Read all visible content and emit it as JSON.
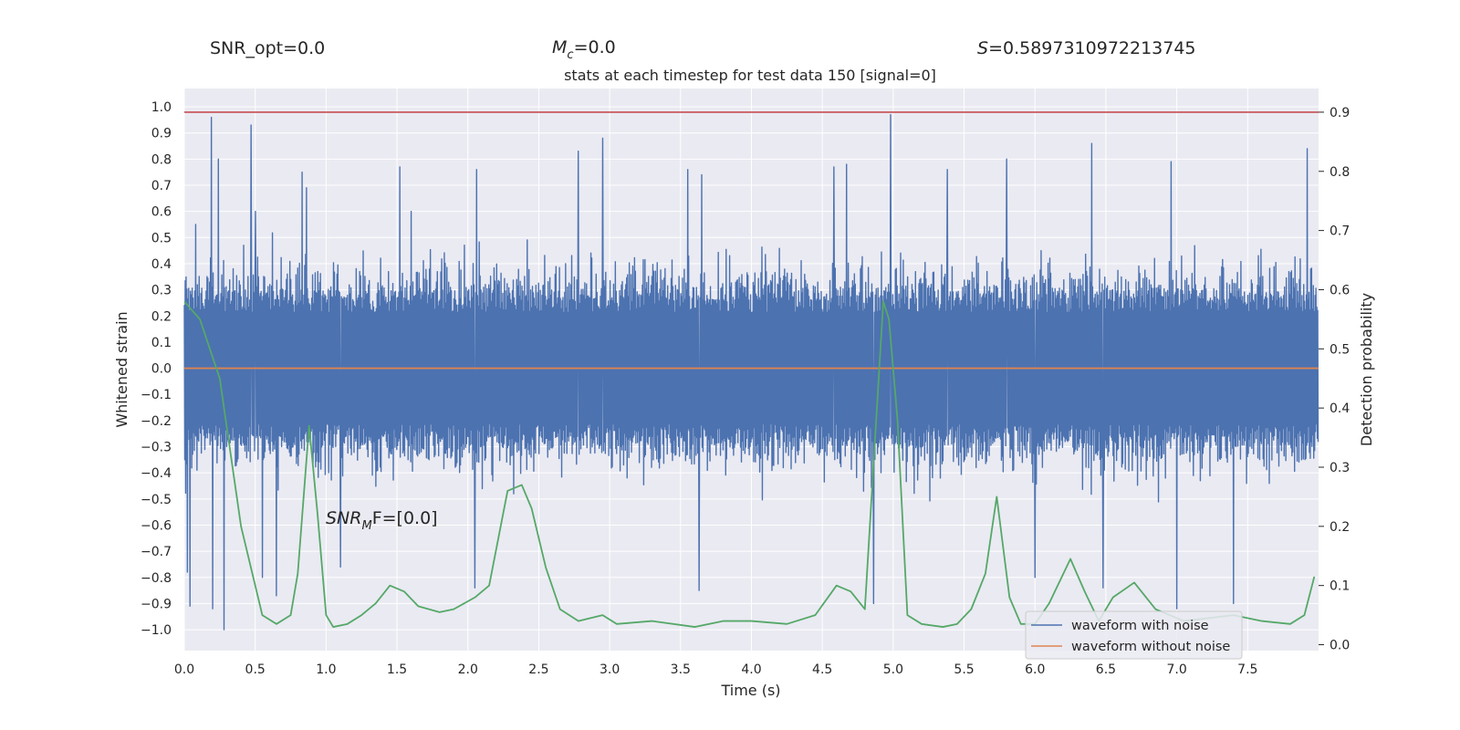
{
  "header_stats": {
    "snr_opt": "SNR_opt=0.0",
    "mc_symbol": "M",
    "mc_sub": "c",
    "mc_value": "=0.0",
    "s_symbol": "S",
    "s_value": "=0.5897310972213745"
  },
  "annotation": {
    "snr_symbol": "SNR",
    "snr_sub": "M",
    "snr_rest": "F=[0.0]"
  },
  "colors": {
    "plot_bg": "#eaeaf2",
    "grid": "#ffffff",
    "noise": "#4c72b0",
    "clean": "#dd8452",
    "prob": "#55a868",
    "threshold": "#c44e52"
  },
  "chart_data": {
    "type": "line",
    "title": "stats at each timestep for test data 150 [signal=0]",
    "xlabel": "Time (s)",
    "ylabel": "Whitened strain",
    "y2label": "Detection probability",
    "xlim": [
      0.0,
      8.0
    ],
    "ylim": [
      -1.08,
      1.07
    ],
    "y2lim": [
      -0.01,
      0.94
    ],
    "x_ticks": [
      "0.0",
      "0.5",
      "1.0",
      "1.5",
      "2.0",
      "2.5",
      "3.0",
      "3.5",
      "4.0",
      "4.5",
      "5.0",
      "5.5",
      "6.0",
      "6.5",
      "7.0",
      "7.5"
    ],
    "y_ticks": [
      "1.0",
      "0.9",
      "0.8",
      "0.7",
      "0.6",
      "0.5",
      "0.4",
      "0.3",
      "0.2",
      "0.1",
      "0.0",
      "−0.1",
      "−0.2",
      "−0.3",
      "−0.4",
      "−0.5",
      "−0.6",
      "−0.7",
      "−0.8",
      "−0.9",
      "−1.0"
    ],
    "y2_ticks": [
      "0.9",
      "0.8",
      "0.7",
      "0.6",
      "0.5",
      "0.4",
      "0.3",
      "0.2",
      "0.1",
      "0.0"
    ],
    "threshold": 0.9,
    "noise_series": {
      "name": "waveform with noise",
      "typical_band": [
        -0.25,
        0.3
      ],
      "spikes": [
        [
          0.08,
          0.55
        ],
        [
          0.19,
          0.96
        ],
        [
          0.24,
          0.8
        ],
        [
          0.28,
          0.7
        ],
        [
          0.47,
          0.93
        ],
        [
          0.5,
          0.6
        ],
        [
          0.83,
          0.75
        ],
        [
          0.86,
          0.69
        ],
        [
          1.52,
          0.77
        ],
        [
          1.6,
          0.6
        ],
        [
          2.06,
          0.76
        ],
        [
          2.78,
          0.83
        ],
        [
          2.95,
          0.88
        ],
        [
          3.55,
          0.76
        ],
        [
          3.65,
          0.74
        ],
        [
          4.58,
          0.77
        ],
        [
          4.67,
          0.78
        ],
        [
          4.98,
          0.97
        ],
        [
          5.38,
          0.76
        ],
        [
          5.8,
          0.8
        ],
        [
          6.4,
          0.86
        ],
        [
          6.96,
          0.79
        ],
        [
          7.92,
          0.84
        ],
        [
          0.02,
          -0.78
        ],
        [
          0.04,
          -0.91
        ],
        [
          0.2,
          -0.92
        ],
        [
          0.28,
          -1.0
        ],
        [
          0.55,
          -0.8
        ],
        [
          0.65,
          -0.87
        ],
        [
          1.1,
          -0.76
        ],
        [
          2.05,
          -0.84
        ],
        [
          3.63,
          -0.85
        ],
        [
          4.86,
          -0.9
        ],
        [
          6.0,
          -0.8
        ],
        [
          6.48,
          -0.84
        ],
        [
          7.0,
          -0.92
        ],
        [
          7.4,
          -0.9
        ]
      ]
    },
    "clean_series": {
      "name": "waveform without noise",
      "x": [
        0.0,
        8.0
      ],
      "y": [
        0.0,
        0.0
      ]
    },
    "probability_series": {
      "x": [
        0.0,
        0.11,
        0.25,
        0.4,
        0.55,
        0.65,
        0.75,
        0.8,
        0.88,
        0.94,
        1.0,
        1.05,
        1.15,
        1.25,
        1.35,
        1.45,
        1.55,
        1.65,
        1.8,
        1.9,
        2.05,
        2.15,
        2.28,
        2.38,
        2.45,
        2.55,
        2.65,
        2.78,
        2.95,
        3.05,
        3.3,
        3.6,
        3.8,
        4.0,
        4.25,
        4.45,
        4.6,
        4.7,
        4.8,
        4.93,
        4.97,
        5.03,
        5.1,
        5.2,
        5.35,
        5.45,
        5.55,
        5.65,
        5.73,
        5.82,
        5.9,
        6.0,
        6.1,
        6.25,
        6.35,
        6.45,
        6.55,
        6.7,
        6.85,
        7.05,
        7.4,
        7.6,
        7.8,
        7.9,
        7.97
      ],
      "y": [
        0.58,
        0.55,
        0.45,
        0.2,
        0.05,
        0.035,
        0.05,
        0.12,
        0.37,
        0.22,
        0.05,
        0.03,
        0.035,
        0.05,
        0.07,
        0.1,
        0.09,
        0.065,
        0.055,
        0.06,
        0.08,
        0.1,
        0.26,
        0.27,
        0.23,
        0.13,
        0.06,
        0.04,
        0.05,
        0.035,
        0.04,
        0.03,
        0.04,
        0.04,
        0.035,
        0.05,
        0.1,
        0.09,
        0.06,
        0.58,
        0.55,
        0.38,
        0.05,
        0.035,
        0.03,
        0.035,
        0.06,
        0.12,
        0.25,
        0.08,
        0.035,
        0.035,
        0.07,
        0.145,
        0.09,
        0.04,
        0.08,
        0.105,
        0.06,
        0.04,
        0.05,
        0.04,
        0.035,
        0.05,
        0.115
      ]
    },
    "legend": [
      "waveform with noise",
      "waveform without noise"
    ],
    "legend_placement": "lower-right",
    "grid": true
  }
}
